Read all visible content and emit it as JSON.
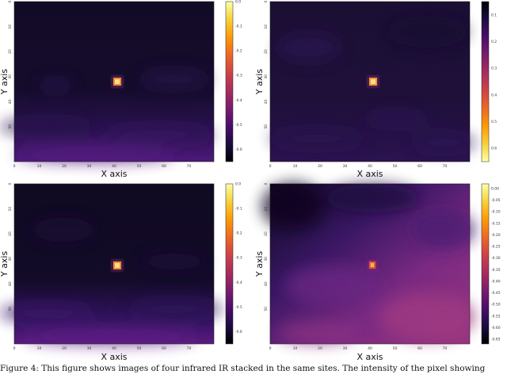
{
  "colormap": [
    "#000004",
    "#1b0c41",
    "#4a0c6b",
    "#781c6d",
    "#a52c60",
    "#cf4446",
    "#ed6925",
    "#fb9b06",
    "#f7d13d",
    "#fcffa4"
  ],
  "chart_data": [
    {
      "type": "heatmap",
      "panel": "top-left",
      "xlabel": "X axis",
      "ylabel": "Y axis",
      "x_ticks": [
        "0",
        "10",
        "20",
        "30",
        "40",
        "50",
        "60",
        "70"
      ],
      "y_ticks": [
        "0",
        "10",
        "20",
        "30",
        "40",
        "50"
      ],
      "colorbar_ticks": [
        "0.0",
        "-0.1",
        "-0.2",
        "-0.3",
        "-0.4",
        "-0.5",
        "-0.6"
      ],
      "colorbar_range": [
        -0.65,
        0.0
      ],
      "hotspot": {
        "x": 40,
        "y": 30
      },
      "background": "dark purple, brighter band near bottom"
    },
    {
      "type": "heatmap",
      "panel": "top-right",
      "xlabel": "X axis",
      "ylabel": "Y axis",
      "x_ticks": [
        "0",
        "10",
        "20",
        "30",
        "40",
        "50",
        "60",
        "70"
      ],
      "y_ticks": [
        "0",
        "10",
        "20",
        "30",
        "40",
        "50"
      ],
      "colorbar_ticks": [
        "0.1",
        "0.2",
        "0.3",
        "0.4",
        "0.5",
        "0.6"
      ],
      "colorbar_range": [
        0.05,
        0.65
      ],
      "hotspot": {
        "x": 40,
        "y": 30
      },
      "background": "uniform dark purple"
    },
    {
      "type": "heatmap",
      "panel": "bottom-left",
      "xlabel": "X axis",
      "ylabel": "Y axis",
      "x_ticks": [
        "0",
        "10",
        "20",
        "30",
        "40",
        "50",
        "60",
        "70"
      ],
      "y_ticks": [
        "0",
        "10",
        "20",
        "30",
        "40",
        "50"
      ],
      "colorbar_ticks": [
        "0.0",
        "-0.1",
        "-0.2",
        "-0.3",
        "-0.4",
        "-0.5",
        "-0.6"
      ],
      "colorbar_range": [
        -0.65,
        0.0
      ],
      "hotspot": {
        "x": 40,
        "y": 30
      },
      "background": "dark purple, brighter band near bottom"
    },
    {
      "type": "heatmap",
      "panel": "bottom-right",
      "xlabel": "X axis",
      "ylabel": "Y axis",
      "x_ticks": [
        "0",
        "10",
        "20",
        "30",
        "40",
        "50",
        "60",
        "70"
      ],
      "y_ticks": [
        "0",
        "10",
        "20",
        "30",
        "40",
        "50"
      ],
      "colorbar_ticks": [
        "0.00",
        "-0.05",
        "-0.10",
        "-0.15",
        "-0.20",
        "-0.25",
        "-0.30",
        "-0.35",
        "-0.40",
        "-0.45",
        "-0.50",
        "-0.55",
        "-0.60",
        "-0.65"
      ],
      "colorbar_range": [
        -0.67,
        0.02
      ],
      "hotspot": {
        "x": 40,
        "y": 30
      },
      "background": "gradient from dark top-left to magenta bottom-right"
    }
  ],
  "caption": "Figure 4: This figure shows images of four infrared IR stacked in the same sites. The intensity of the pixel showing"
}
